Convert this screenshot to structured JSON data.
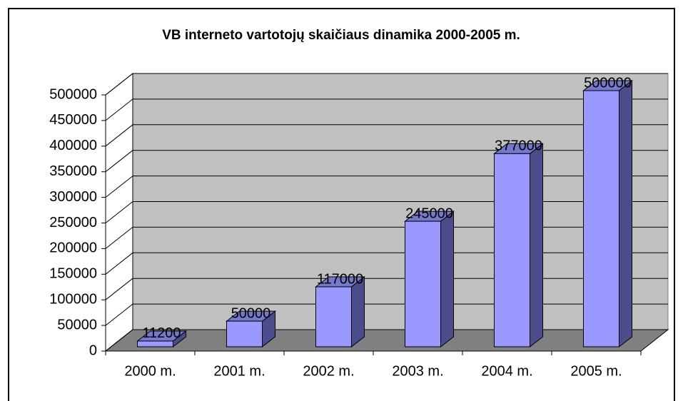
{
  "chart_data": {
    "type": "bar",
    "title": "VB interneto vartotojų skaičiaus dinamika 2000-2005 m.",
    "categories": [
      "2000 m.",
      "2001 m.",
      "2002 m.",
      "2003 m.",
      "2004 m.",
      "2005 m."
    ],
    "values": [
      11200,
      50000,
      117000,
      245000,
      377000,
      500000
    ],
    "color": "#9999ff",
    "ylim": [
      0,
      500000
    ],
    "yticks": [
      0,
      50000,
      100000,
      150000,
      200000,
      250000,
      300000,
      350000,
      400000,
      450000,
      500000
    ],
    "grid": true
  }
}
